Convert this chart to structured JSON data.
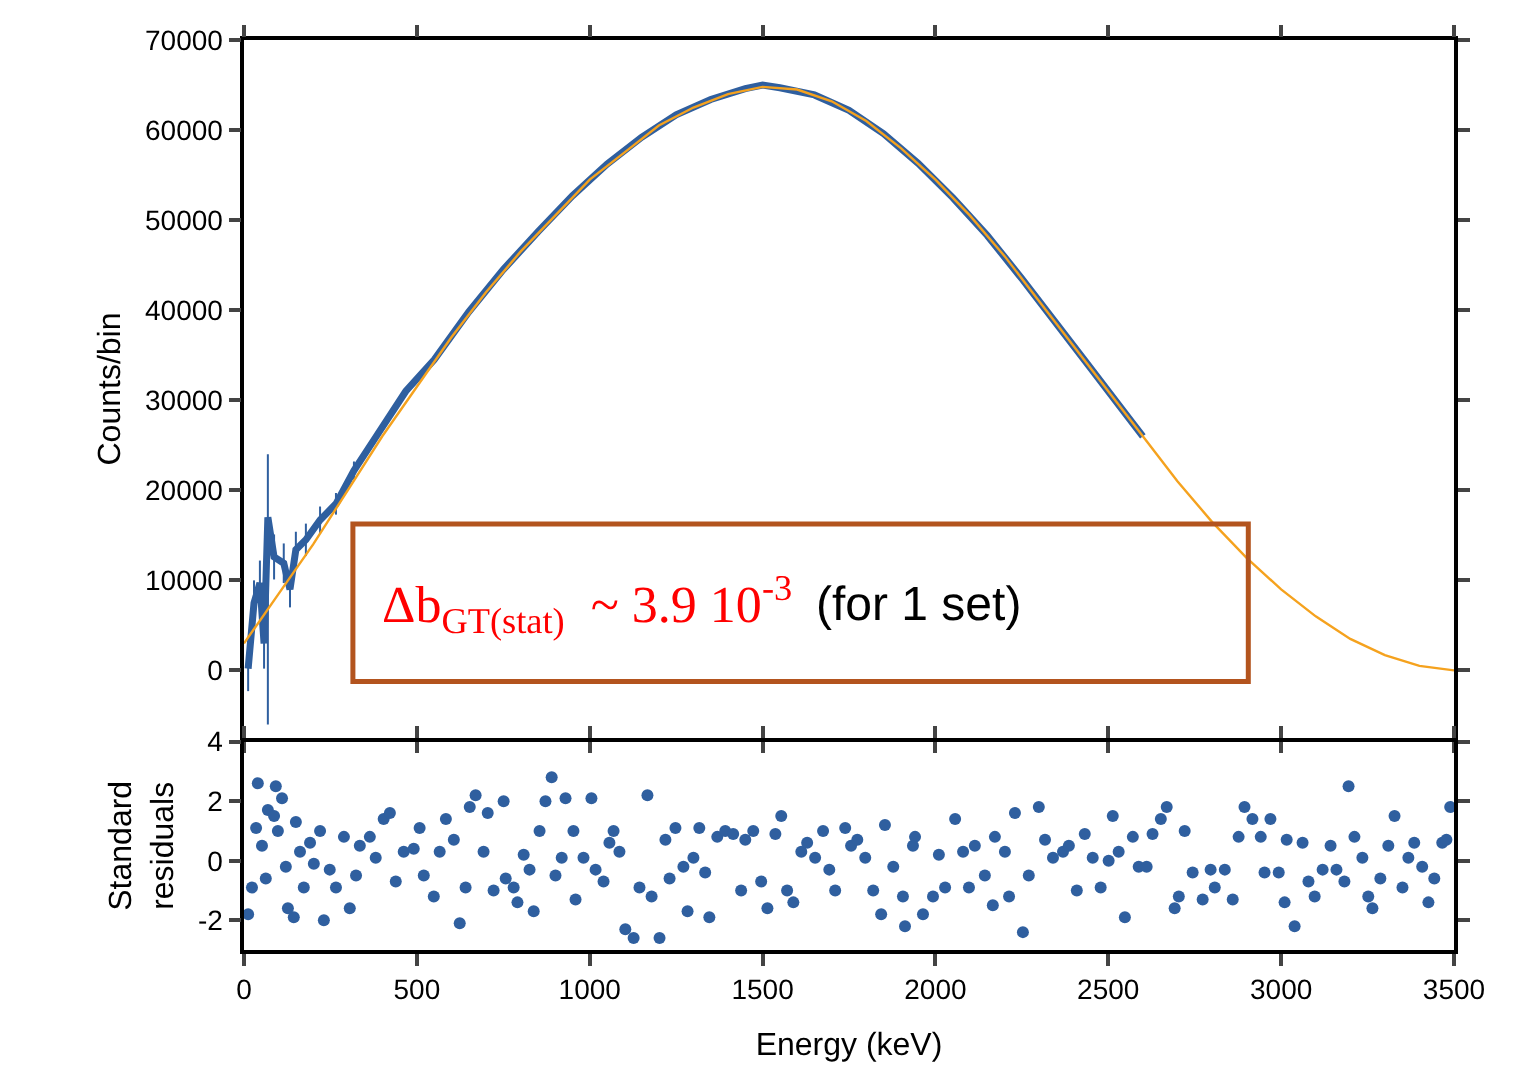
{
  "chart_data": [
    {
      "type": "line",
      "ylabel": "Counts/bin",
      "xlim": [
        0,
        3500
      ],
      "xticks": [
        0,
        500,
        1000,
        1500,
        2000,
        2500,
        3000,
        3500
      ],
      "ylim": [
        -7500,
        70000
      ],
      "yticks": [
        0,
        10000,
        20000,
        30000,
        40000,
        50000,
        60000,
        70000
      ],
      "tick_labels": "y",
      "grid": false,
      "marker": "none",
      "annotations": [
        "Δb$_{GT(stat)}$  ~ 3.9 10$^{-3}$",
        "(for 1 set)"
      ],
      "series": [
        {
          "color": "#2f5f9f",
          "x": [
            12,
            29,
            46,
            58,
            69,
            87,
            115,
            133,
            150,
            179,
            220,
            266,
            318,
            393,
            468,
            550,
            650,
            750,
            850,
            950,
            1050,
            1150,
            1250,
            1350,
            1450,
            1500,
            1550,
            1650,
            1750,
            1850,
            1950,
            2050,
            2150,
            2250,
            2350,
            2450,
            2550,
            2600
          ],
          "values": [
            200,
            7500,
            9700,
            3000,
            17000,
            12600,
            11900,
            9000,
            13400,
            14500,
            16700,
            18500,
            22200,
            26600,
            31000,
            34500,
            39800,
            44500,
            48700,
            52700,
            56200,
            59200,
            61700,
            63400,
            64600,
            65000,
            64700,
            63900,
            62200,
            59600,
            56300,
            52500,
            48300,
            43500,
            38500,
            33500,
            28500,
            26000
          ],
          "errors": [
            2500,
            2500,
            2500,
            2800,
            [
              -6000,
              24000
            ],
            2500,
            2200,
            2000,
            2000,
            1800,
            1500,
            1200,
            1000,
            null,
            null,
            null,
            null,
            null,
            null,
            null,
            null,
            null,
            null,
            null,
            null,
            null,
            null,
            null,
            null,
            null,
            null,
            null,
            null,
            null,
            null,
            null,
            null,
            null
          ]
        },
        {
          "type": "line",
          "color": "#f5a21e",
          "x": [
            0,
            100,
            200,
            300,
            400,
            500,
            600,
            700,
            800,
            900,
            1000,
            1100,
            1200,
            1300,
            1400,
            1500,
            1600,
            1700,
            1800,
            1900,
            2000,
            2100,
            2200,
            2300,
            2400,
            2500,
            2600,
            2700,
            2800,
            2900,
            3000,
            3100,
            3200,
            3300,
            3400,
            3500
          ],
          "values": [
            3000,
            8500,
            14000,
            20000,
            26000,
            31500,
            37000,
            42000,
            46500,
            50500,
            54500,
            57500,
            60500,
            62500,
            64000,
            64800,
            64500,
            63200,
            61000,
            58000,
            54500,
            50500,
            46000,
            41000,
            36000,
            31000,
            26000,
            21000,
            16500,
            12500,
            9000,
            6000,
            3500,
            1700,
            500,
            0
          ]
        }
      ]
    },
    {
      "type": "scatter",
      "xlabel": "Energy (keV)",
      "ylabel": "Standard\nresiduals",
      "xlim": [
        0,
        3500
      ],
      "xticks": [
        0,
        500,
        1000,
        1500,
        2000,
        2500,
        3000,
        3500
      ],
      "ylim": [
        -3,
        4
      ],
      "yticks": [
        -2,
        0,
        2,
        4
      ],
      "grid": false,
      "marker": "circle",
      "series": [
        {
          "color": "#2f5f9f",
          "x": [
            12,
            23,
            35,
            40,
            52,
            63,
            69,
            87,
            92,
            98,
            110,
            121,
            127,
            144,
            150,
            162,
            173,
            191,
            202,
            220,
            231,
            248,
            266,
            289,
            306,
            324,
            335,
            364,
            381,
            404,
            422,
            439,
            462,
            491,
            508,
            520,
            549,
            566,
            584,
            607,
            624,
            641,
            653,
            670,
            693,
            705,
            722,
            751,
            757,
            780,
            791,
            809,
            826,
            838,
            855,
            872,
            890,
            901,
            919,
            930,
            953,
            959,
            982,
            1005,
            1017,
            1040,
            1057,
            1069,
            1086,
            1103,
            1127,
            1144,
            1167,
            1179,
            1202,
            1219,
            1231,
            1248,
            1271,
            1283,
            1300,
            1317,
            1334,
            1346,
            1369,
            1392,
            1415,
            1438,
            1450,
            1473,
            1496,
            1514,
            1537,
            1554,
            1571,
            1589,
            1612,
            1629,
            1652,
            1675,
            1693,
            1710,
            1739,
            1756,
            1774,
            1797,
            1820,
            1843,
            1854,
            1878,
            1906,
            1912,
            1935,
            1941,
            1964,
            1993,
            2010,
            2028,
            2057,
            2080,
            2097,
            2114,
            2143,
            2166,
            2172,
            2201,
            2213,
            2230,
            2253,
            2270,
            2299,
            2317,
            2340,
            2369,
            2386,
            2409,
            2432,
            2455,
            2478,
            2501,
            2513,
            2530,
            2548,
            2571,
            2588,
            2611,
            2628,
            2652,
            2669,
            2692,
            2704,
            2721,
            2744,
            2773,
            2796,
            2808,
            2837,
            2860,
            2877,
            2894,
            2917,
            2941,
            2952,
            2969,
            2993,
            3010,
            3016,
            3039,
            3062,
            3079,
            3097,
            3120,
            3143,
            3160,
            3183,
            3195,
            3212,
            3235,
            3252,
            3264,
            3287,
            3310,
            3328,
            3351,
            3368,
            3385,
            3408,
            3426,
            3443,
            3466,
            3478,
            3489
          ],
          "values": [
            -1.8,
            -0.9,
            1.1,
            2.6,
            0.5,
            -0.6,
            1.7,
            1.5,
            2.5,
            1.0,
            2.1,
            -0.2,
            -1.6,
            -1.9,
            1.3,
            0.3,
            -0.9,
            0.6,
            -0.1,
            1.0,
            -2.0,
            -0.3,
            -0.9,
            0.8,
            -1.6,
            -0.5,
            0.5,
            0.8,
            0.1,
            1.4,
            1.6,
            -0.7,
            0.3,
            0.4,
            1.1,
            -0.5,
            -1.2,
            0.3,
            1.4,
            0.7,
            -2.1,
            -0.9,
            1.8,
            2.2,
            0.3,
            1.6,
            -1.0,
            2.0,
            -0.6,
            -0.9,
            -1.4,
            0.2,
            -0.3,
            -1.7,
            1.0,
            2.0,
            2.8,
            -0.5,
            0.1,
            2.1,
            1.0,
            -1.3,
            0.1,
            2.1,
            -0.3,
            -0.7,
            0.6,
            1.0,
            0.3,
            -2.3,
            -2.6,
            -0.9,
            2.2,
            -1.2,
            -2.6,
            0.7,
            -0.6,
            1.1,
            -0.2,
            -1.7,
            0.1,
            1.1,
            -0.4,
            -1.9,
            0.8,
            1.0,
            0.9,
            -1.0,
            0.7,
            1.0,
            -0.7,
            -1.6,
            0.9,
            1.5,
            -1.0,
            -1.4,
            0.3,
            0.6,
            0.1,
            1.0,
            -0.3,
            -1.0,
            1.1,
            0.5,
            0.7,
            0.1,
            -1.0,
            -1.8,
            1.2,
            -0.2,
            -1.2,
            -2.2,
            0.5,
            0.8,
            -1.8,
            -1.2,
            0.2,
            -0.9,
            1.4,
            0.3,
            -0.9,
            0.5,
            -0.5,
            -1.5,
            0.8,
            0.3,
            -1.2,
            1.6,
            -2.4,
            -0.5,
            1.8,
            0.7,
            0.1,
            0.3,
            0.5,
            -1.0,
            0.9,
            0.1,
            -0.9,
            0.0,
            1.5,
            0.3,
            -1.9,
            0.8,
            -0.2,
            -0.2,
            0.9,
            1.4,
            1.8,
            -1.6,
            -1.2,
            1.0,
            -0.4,
            -1.3,
            -0.3,
            -0.9,
            -0.3,
            -1.3,
            0.8,
            1.8,
            1.4,
            0.8,
            -0.4,
            1.4,
            -0.4,
            -1.4,
            0.7,
            -2.2,
            0.6,
            -0.7,
            -1.2,
            -0.3,
            0.5,
            -0.3,
            -0.7,
            2.5,
            0.8,
            0.1,
            -1.2,
            -1.6,
            -0.6,
            0.5,
            1.5,
            -0.9,
            0.1,
            0.6,
            -0.2,
            -1.4,
            -0.6,
            0.6,
            0.7,
            1.8
          ]
        }
      ]
    }
  ]
}
